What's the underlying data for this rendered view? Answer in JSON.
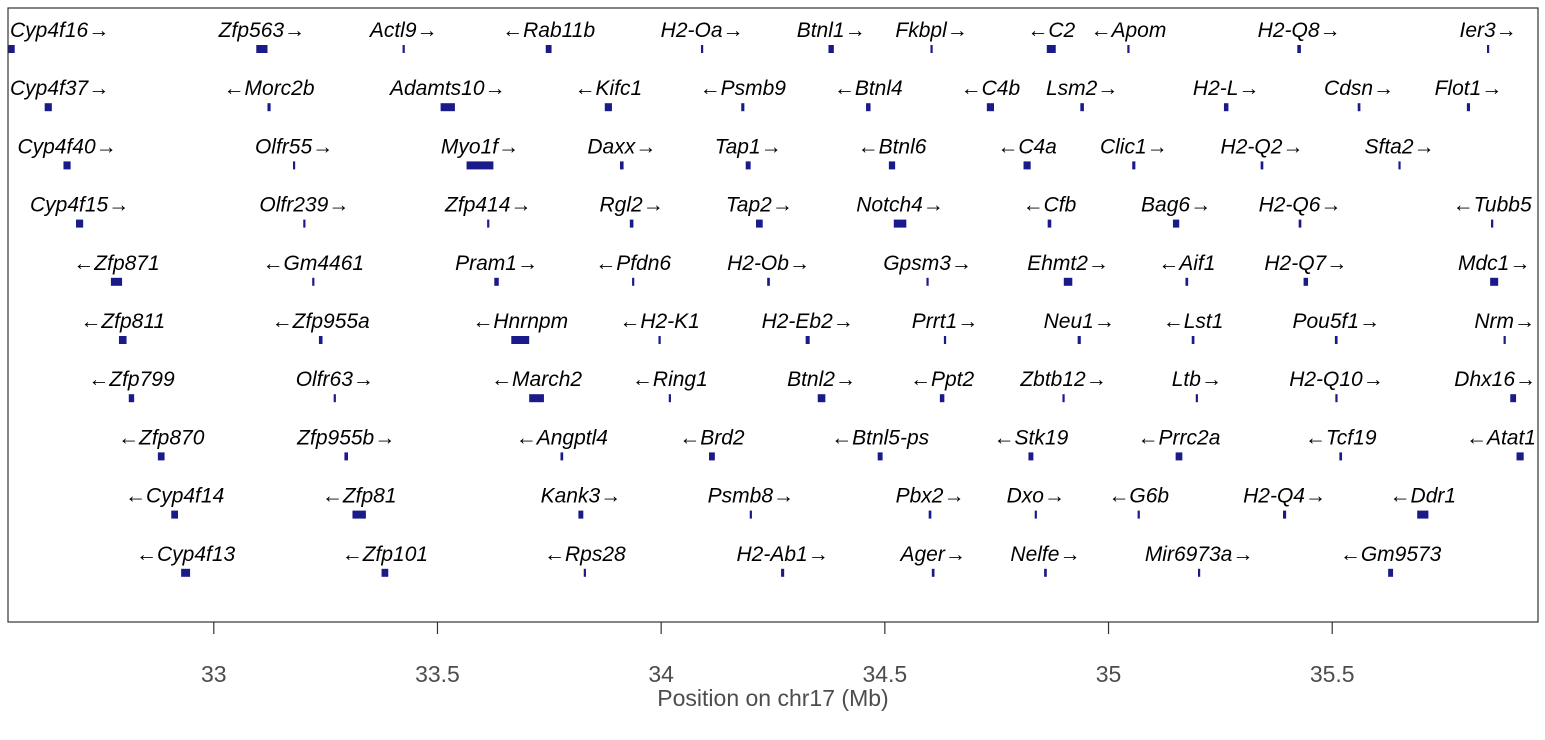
{
  "colors": {
    "feature": "#1a1a8a",
    "frame": "#333333",
    "text": "#000000",
    "axis_text": "#4d4d4d"
  },
  "chart_data": {
    "type": "gene_track",
    "xlabel": "Position on chr17 (Mb)",
    "xlim": [
      32.54,
      35.96
    ],
    "grid": false,
    "ticks": [
      {
        "value": 33,
        "label": "33"
      },
      {
        "value": 33.5,
        "label": "33.5"
      },
      {
        "value": 34,
        "label": "34"
      },
      {
        "value": 34.5,
        "label": "34.5"
      },
      {
        "value": 35,
        "label": "35"
      },
      {
        "value": 35.5,
        "label": "35.5"
      }
    ],
    "genes": [
      {
        "name": "Cyp4f16",
        "strand": "+",
        "row": 1,
        "start": 32.54,
        "end": 32.555
      },
      {
        "name": "Zfp563",
        "strand": "+",
        "row": 1,
        "start": 33.095,
        "end": 33.12
      },
      {
        "name": "Actl9",
        "strand": "+",
        "row": 1,
        "start": 33.422,
        "end": 33.426
      },
      {
        "name": "Rab11b",
        "strand": "-",
        "row": 1,
        "start": 33.742,
        "end": 33.755
      },
      {
        "name": "H2-Oa",
        "strand": "+",
        "row": 1,
        "start": 34.089,
        "end": 34.094
      },
      {
        "name": "Btnl1",
        "strand": "+",
        "row": 1,
        "start": 34.374,
        "end": 34.386
      },
      {
        "name": "Fkbpl",
        "strand": "+",
        "row": 1,
        "start": 34.602,
        "end": 34.604
      },
      {
        "name": "C2",
        "strand": "-",
        "row": 1,
        "start": 34.862,
        "end": 34.882
      },
      {
        "name": "Apom",
        "strand": "-",
        "row": 1,
        "start": 35.042,
        "end": 35.046
      },
      {
        "name": "H2-Q8",
        "strand": "+",
        "row": 1,
        "start": 35.422,
        "end": 35.43
      },
      {
        "name": "Ier3",
        "strand": "+",
        "row": 1,
        "start": 35.846,
        "end": 35.849
      },
      {
        "name": "Cyp4f37",
        "strand": "+",
        "row": 2,
        "start": 32.622,
        "end": 32.638
      },
      {
        "name": "Morc2b",
        "strand": "-",
        "row": 2,
        "start": 33.12,
        "end": 33.127
      },
      {
        "name": "Adamts10",
        "strand": "+",
        "row": 2,
        "start": 33.507,
        "end": 33.539
      },
      {
        "name": "Kifc1",
        "strand": "-",
        "row": 2,
        "start": 33.874,
        "end": 33.89
      },
      {
        "name": "Psmb9",
        "strand": "-",
        "row": 2,
        "start": 34.179,
        "end": 34.186
      },
      {
        "name": "Btnl4",
        "strand": "-",
        "row": 2,
        "start": 34.458,
        "end": 34.468
      },
      {
        "name": "C4b",
        "strand": "-",
        "row": 2,
        "start": 34.728,
        "end": 34.744
      },
      {
        "name": "Lsm2",
        "strand": "+",
        "row": 2,
        "start": 34.937,
        "end": 34.945
      },
      {
        "name": "H2-L",
        "strand": "+",
        "row": 2,
        "start": 35.258,
        "end": 35.268
      },
      {
        "name": "Cdsn",
        "strand": "+",
        "row": 2,
        "start": 35.557,
        "end": 35.563
      },
      {
        "name": "Flot1",
        "strand": "+",
        "row": 2,
        "start": 35.801,
        "end": 35.808
      },
      {
        "name": "Cyp4f40",
        "strand": "+",
        "row": 3,
        "start": 32.664,
        "end": 32.68
      },
      {
        "name": "Olfr55",
        "strand": "+",
        "row": 3,
        "start": 33.177,
        "end": 33.18
      },
      {
        "name": "Myo1f",
        "strand": "+",
        "row": 3,
        "start": 33.565,
        "end": 33.625
      },
      {
        "name": "Daxx",
        "strand": "+",
        "row": 3,
        "start": 33.908,
        "end": 33.916
      },
      {
        "name": "Tap1",
        "strand": "+",
        "row": 3,
        "start": 34.189,
        "end": 34.2
      },
      {
        "name": "Btnl6",
        "strand": "-",
        "row": 3,
        "start": 34.509,
        "end": 34.523
      },
      {
        "name": "C4a",
        "strand": "-",
        "row": 3,
        "start": 34.81,
        "end": 34.826
      },
      {
        "name": "Clic1",
        "strand": "+",
        "row": 3,
        "start": 35.053,
        "end": 35.06
      },
      {
        "name": "H2-Q2",
        "strand": "+",
        "row": 3,
        "start": 35.34,
        "end": 35.346
      },
      {
        "name": "Sfta2",
        "strand": "+",
        "row": 3,
        "start": 35.648,
        "end": 35.651
      },
      {
        "name": "Cyp4f15",
        "strand": "+",
        "row": 4,
        "start": 32.692,
        "end": 32.708
      },
      {
        "name": "Olfr239",
        "strand": "+",
        "row": 4,
        "start": 33.2,
        "end": 33.203
      },
      {
        "name": "Zfp414",
        "strand": "+",
        "row": 4,
        "start": 33.611,
        "end": 33.615
      },
      {
        "name": "Rgl2",
        "strand": "+",
        "row": 4,
        "start": 33.93,
        "end": 33.938
      },
      {
        "name": "Tap2",
        "strand": "+",
        "row": 4,
        "start": 34.212,
        "end": 34.227
      },
      {
        "name": "Notch4",
        "strand": "+",
        "row": 4,
        "start": 34.52,
        "end": 34.548
      },
      {
        "name": "Cfb",
        "strand": "-",
        "row": 4,
        "start": 34.864,
        "end": 34.872
      },
      {
        "name": "Bag6",
        "strand": "+",
        "row": 4,
        "start": 35.144,
        "end": 35.158
      },
      {
        "name": "H2-Q6",
        "strand": "+",
        "row": 4,
        "start": 35.425,
        "end": 35.431
      },
      {
        "name": "Tubb5",
        "strand": "-",
        "row": 4,
        "start": 35.855,
        "end": 35.86
      },
      {
        "name": "Zfp871",
        "strand": "-",
        "row": 5,
        "start": 32.77,
        "end": 32.795
      },
      {
        "name": "Gm4461",
        "strand": "-",
        "row": 5,
        "start": 33.22,
        "end": 33.223
      },
      {
        "name": "Pram1",
        "strand": "+",
        "row": 5,
        "start": 33.627,
        "end": 33.637
      },
      {
        "name": "Pfdn6",
        "strand": "-",
        "row": 5,
        "start": 33.935,
        "end": 33.938
      },
      {
        "name": "H2-Ob",
        "strand": "+",
        "row": 5,
        "start": 34.237,
        "end": 34.243
      },
      {
        "name": "Gpsm3",
        "strand": "+",
        "row": 5,
        "start": 34.593,
        "end": 34.596
      },
      {
        "name": "Ehmt2",
        "strand": "+",
        "row": 5,
        "start": 34.9,
        "end": 34.919
      },
      {
        "name": "Aif1",
        "strand": "-",
        "row": 5,
        "start": 35.172,
        "end": 35.178
      },
      {
        "name": "H2-Q7",
        "strand": "+",
        "row": 5,
        "start": 35.436,
        "end": 35.446
      },
      {
        "name": "Mdc1",
        "strand": "+",
        "row": 5,
        "start": 35.853,
        "end": 35.871
      },
      {
        "name": "Zfp811",
        "strand": "-",
        "row": 6,
        "start": 32.788,
        "end": 32.805
      },
      {
        "name": "Zfp955a",
        "strand": "-",
        "row": 6,
        "start": 33.235,
        "end": 33.243
      },
      {
        "name": "Hnrnpm",
        "strand": "-",
        "row": 6,
        "start": 33.665,
        "end": 33.705
      },
      {
        "name": "H2-K1",
        "strand": "-",
        "row": 6,
        "start": 33.994,
        "end": 33.999
      },
      {
        "name": "H2-Eb2",
        "strand": "+",
        "row": 6,
        "start": 34.323,
        "end": 34.332
      },
      {
        "name": "Prrt1",
        "strand": "+",
        "row": 6,
        "start": 34.632,
        "end": 34.637
      },
      {
        "name": "Neu1",
        "strand": "+",
        "row": 6,
        "start": 34.931,
        "end": 34.938
      },
      {
        "name": "Lst1",
        "strand": "-",
        "row": 6,
        "start": 35.186,
        "end": 35.192
      },
      {
        "name": "Pou5f1",
        "strand": "+",
        "row": 6,
        "start": 35.506,
        "end": 35.512
      },
      {
        "name": "Nrm",
        "strand": "+",
        "row": 6,
        "start": 35.883,
        "end": 35.887
      },
      {
        "name": "Zfp799",
        "strand": "-",
        "row": 7,
        "start": 32.81,
        "end": 32.822
      },
      {
        "name": "Olfr63",
        "strand": "+",
        "row": 7,
        "start": 33.268,
        "end": 33.271
      },
      {
        "name": "March2",
        "strand": "-",
        "row": 7,
        "start": 33.705,
        "end": 33.738
      },
      {
        "name": "Ring1",
        "strand": "-",
        "row": 7,
        "start": 34.017,
        "end": 34.021
      },
      {
        "name": "Btnl2",
        "strand": "+",
        "row": 7,
        "start": 34.35,
        "end": 34.367
      },
      {
        "name": "Ppt2",
        "strand": "-",
        "row": 7,
        "start": 34.623,
        "end": 34.633
      },
      {
        "name": "Zbtb12",
        "strand": "+",
        "row": 7,
        "start": 34.897,
        "end": 34.9
      },
      {
        "name": "Ltb",
        "strand": "+",
        "row": 7,
        "start": 35.195,
        "end": 35.198
      },
      {
        "name": "H2-Q10",
        "strand": "+",
        "row": 7,
        "start": 35.507,
        "end": 35.512
      },
      {
        "name": "Dhx16",
        "strand": "+",
        "row": 7,
        "start": 35.898,
        "end": 35.911
      },
      {
        "name": "Zfp870",
        "strand": "-",
        "row": 8,
        "start": 32.875,
        "end": 32.89
      },
      {
        "name": "Zfp955b",
        "strand": "+",
        "row": 8,
        "start": 33.292,
        "end": 33.3
      },
      {
        "name": "Angptl4",
        "strand": "-",
        "row": 8,
        "start": 33.775,
        "end": 33.781
      },
      {
        "name": "Brd2",
        "strand": "-",
        "row": 8,
        "start": 34.107,
        "end": 34.12
      },
      {
        "name": "Btnl5-ps",
        "strand": "-",
        "row": 8,
        "start": 34.484,
        "end": 34.495
      },
      {
        "name": "Stk19",
        "strand": "-",
        "row": 8,
        "start": 34.821,
        "end": 34.832
      },
      {
        "name": "Prrc2a",
        "strand": "-",
        "row": 8,
        "start": 35.15,
        "end": 35.165
      },
      {
        "name": "Tcf19",
        "strand": "-",
        "row": 8,
        "start": 35.516,
        "end": 35.522
      },
      {
        "name": "Atat1",
        "strand": "-",
        "row": 8,
        "start": 35.912,
        "end": 35.928
      },
      {
        "name": "Cyp4f14",
        "strand": "-",
        "row": 9,
        "start": 32.905,
        "end": 32.92
      },
      {
        "name": "Zfp81",
        "strand": "-",
        "row": 9,
        "start": 33.31,
        "end": 33.34
      },
      {
        "name": "Kank3",
        "strand": "+",
        "row": 9,
        "start": 33.815,
        "end": 33.826
      },
      {
        "name": "Psmb8",
        "strand": "+",
        "row": 9,
        "start": 34.198,
        "end": 34.202
      },
      {
        "name": "Pbx2",
        "strand": "+",
        "row": 9,
        "start": 34.598,
        "end": 34.604
      },
      {
        "name": "Dxo",
        "strand": "+",
        "row": 9,
        "start": 34.835,
        "end": 34.838
      },
      {
        "name": "G6b",
        "strand": "-",
        "row": 9,
        "start": 35.065,
        "end": 35.07
      },
      {
        "name": "H2-Q4",
        "strand": "+",
        "row": 9,
        "start": 35.39,
        "end": 35.397
      },
      {
        "name": "Ddr1",
        "strand": "-",
        "row": 9,
        "start": 35.69,
        "end": 35.715
      },
      {
        "name": "Cyp4f13",
        "strand": "-",
        "row": 10,
        "start": 32.927,
        "end": 32.947
      },
      {
        "name": "Zfp101",
        "strand": "-",
        "row": 10,
        "start": 33.375,
        "end": 33.39
      },
      {
        "name": "Rps28",
        "strand": "-",
        "row": 10,
        "start": 33.827,
        "end": 33.83
      },
      {
        "name": "H2-Ab1",
        "strand": "+",
        "row": 10,
        "start": 34.268,
        "end": 34.275
      },
      {
        "name": "Ager",
        "strand": "+",
        "row": 10,
        "start": 34.605,
        "end": 34.611
      },
      {
        "name": "Nelfe",
        "strand": "+",
        "row": 10,
        "start": 34.856,
        "end": 34.862
      },
      {
        "name": "Mir6973a",
        "strand": "+",
        "row": 10,
        "start": 35.2,
        "end": 35.202
      },
      {
        "name": "Gm9573",
        "strand": "-",
        "row": 10,
        "start": 35.625,
        "end": 35.636
      }
    ]
  }
}
